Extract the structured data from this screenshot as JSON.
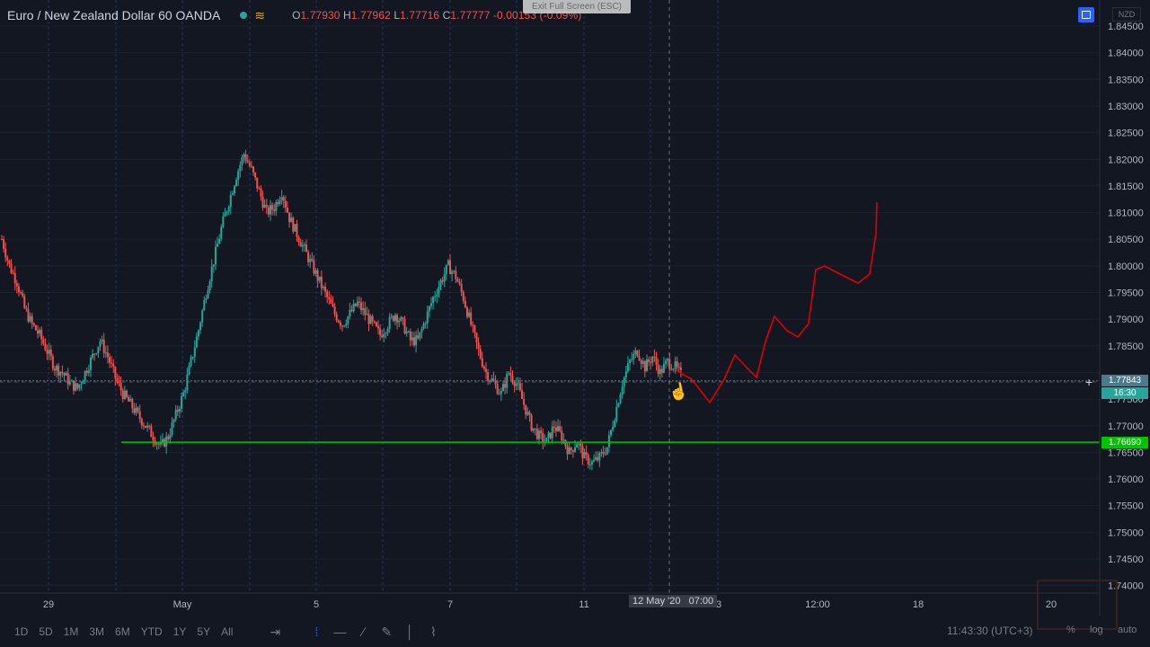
{
  "header": {
    "title": "Euro / New Zealand Dollar  60  OANDA",
    "ohlc": {
      "open_label": "O",
      "open": "1.77930",
      "high_label": "H",
      "high": "1.77962",
      "low_label": "L",
      "low": "1.77716",
      "close_label": "C",
      "close": "1.77777",
      "change": "-0.00153 (-0.09%)"
    },
    "exit_fullscreen": "Exit Full Screen (ESC)",
    "currency": "NZD"
  },
  "price_axis": {
    "ticks": [
      "1.84500",
      "1.84000",
      "1.83500",
      "1.83000",
      "1.82500",
      "1.82000",
      "1.81500",
      "1.81000",
      "1.80500",
      "1.80000",
      "1.79500",
      "1.79000",
      "1.78500",
      "1.77843",
      "1.77500",
      "1.77000",
      "1.76690",
      "1.76500",
      "1.76000",
      "1.75500",
      "1.75000",
      "1.74500",
      "1.74000"
    ],
    "current_price": "1.77843",
    "countdown": "16:30",
    "support_price": "1.76690"
  },
  "time_axis": {
    "labels": [
      "29",
      "May",
      "5",
      "7",
      "11",
      "3",
      "12:00",
      "18",
      "20"
    ],
    "crosshair_date": "12 May '20",
    "crosshair_time": "07:00"
  },
  "toolbar": {
    "timeframes": [
      "1D",
      "5D",
      "1M",
      "3M",
      "6M",
      "YTD",
      "1Y",
      "5Y",
      "All"
    ],
    "timestamp": "11:43:30 (UTC+3)",
    "pct": "%",
    "log": "log",
    "auto": "auto"
  },
  "colors": {
    "background": "#131722",
    "up": "#26a69a",
    "down": "#ef5350",
    "support_line": "#00c400",
    "projection": "#e00000",
    "grid": "#2a3f6b"
  },
  "chart_data": {
    "type": "candlestick",
    "symbol": "EURNZD",
    "interval": "60",
    "y_range": [
      1.74,
      1.845
    ],
    "path_closes": [
      1.805,
      1.8,
      1.797,
      1.792,
      1.789,
      1.787,
      1.784,
      1.781,
      1.78,
      1.778,
      1.777,
      1.78,
      1.783,
      1.786,
      1.783,
      1.779,
      1.776,
      1.774,
      1.772,
      1.77,
      1.768,
      1.766,
      1.768,
      1.772,
      1.776,
      1.782,
      1.788,
      1.795,
      1.801,
      1.807,
      1.812,
      1.817,
      1.821,
      1.818,
      1.814,
      1.81,
      1.811,
      1.814,
      1.809,
      1.806,
      1.803,
      1.8,
      1.797,
      1.794,
      1.791,
      1.789,
      1.791,
      1.793,
      1.791,
      1.789,
      1.787,
      1.789,
      1.791,
      1.789,
      1.786,
      1.786,
      1.79,
      1.794,
      1.797,
      1.8,
      1.798,
      1.794,
      1.789,
      1.784,
      1.78,
      1.778,
      1.776,
      1.78,
      1.778,
      1.774,
      1.77,
      1.768,
      1.767,
      1.77,
      1.768,
      1.765,
      1.767,
      1.764,
      1.763,
      1.764,
      1.766,
      1.772,
      1.778,
      1.782,
      1.784,
      1.781,
      1.783,
      1.78,
      1.782,
      1.781,
      1.779
    ],
    "support_level": 1.7669,
    "current_price": 1.77843
  }
}
